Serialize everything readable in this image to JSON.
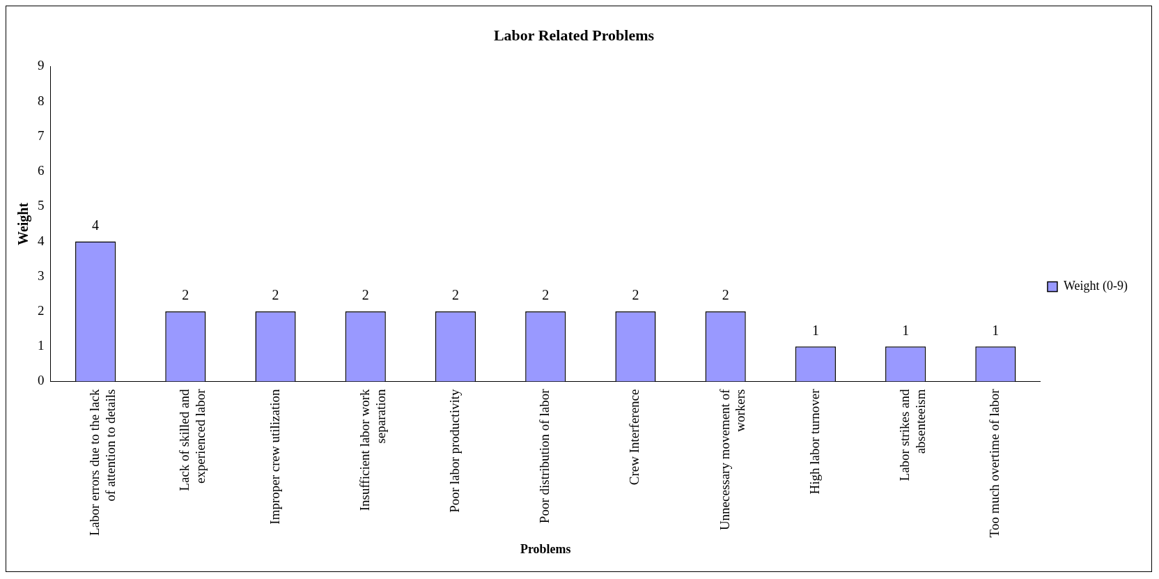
{
  "chart_data": {
    "type": "bar",
    "title": "Labor Related Problems",
    "xlabel": "Problems",
    "ylabel": "Weight",
    "categories": [
      "Labor errors due to the lack of attention to details",
      "Lack of skilled and experienced labor",
      "Improper crew utilization",
      "Insufficient labor work separation",
      "Poor labor productivity",
      "Poor distribution of labor",
      "Crew Interference",
      "Unnecessary movement of workers",
      "High labor turnover",
      "Labor strikes and absenteeism",
      "Too much overtime of labor"
    ],
    "series": [
      {
        "name": "Weight (0-9)",
        "color": "#9999ff",
        "values": [
          4,
          2,
          2,
          2,
          2,
          2,
          2,
          2,
          1,
          1,
          1
        ]
      }
    ],
    "ylim": [
      0,
      9
    ],
    "yticks": [
      0,
      1,
      2,
      3,
      4,
      5,
      6,
      7,
      8,
      9
    ],
    "grid": false,
    "legend": "right",
    "data_labels": true
  }
}
